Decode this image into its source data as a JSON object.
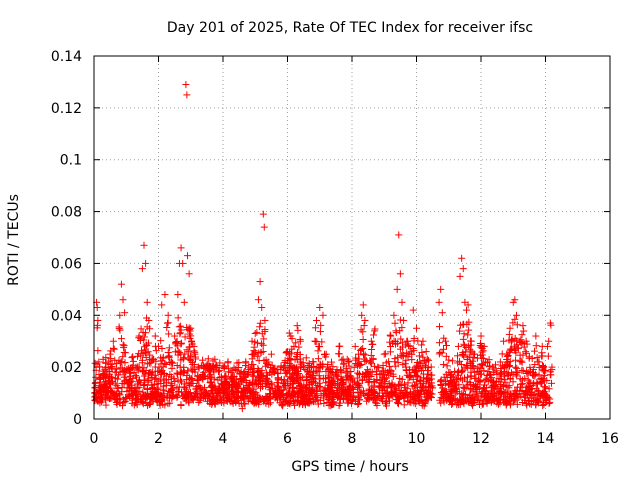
{
  "chart_data": {
    "type": "scatter",
    "title": "Day 201 of 2025, Rate Of TEC Index for receiver ifsc",
    "xlabel": "GPS time / hours",
    "ylabel": "ROTI / TECUs",
    "xlim": [
      0,
      16
    ],
    "ylim": [
      0,
      0.14
    ],
    "xticks": [
      0,
      2,
      4,
      6,
      8,
      10,
      12,
      14,
      16
    ],
    "yticks": [
      0,
      0.02,
      0.04,
      0.06,
      0.08,
      0.1,
      0.12,
      0.14
    ],
    "ytick_labels": [
      "0",
      "0.02",
      "0.04",
      "0.06",
      "0.08",
      "0.1",
      "0.12",
      "0.14"
    ],
    "grid": true,
    "marker": "+",
    "color": "#ff0000",
    "data_gaps_hours": [
      [
        10.5,
        10.7
      ]
    ],
    "series": [
      {
        "name": "ROTI",
        "points": [
          [
            0.02,
            0.01
          ],
          [
            0.05,
            0.014
          ],
          [
            0.08,
            0.045
          ],
          [
            0.1,
            0.043
          ],
          [
            0.12,
            0.038
          ],
          [
            0.15,
            0.022
          ],
          [
            0.2,
            0.012
          ],
          [
            0.3,
            0.016
          ],
          [
            0.4,
            0.011
          ],
          [
            0.5,
            0.025
          ],
          [
            0.6,
            0.03
          ],
          [
            0.7,
            0.018
          ],
          [
            0.8,
            0.04
          ],
          [
            0.85,
            0.052
          ],
          [
            0.9,
            0.046
          ],
          [
            0.95,
            0.041
          ],
          [
            1.0,
            0.015
          ],
          [
            1.1,
            0.012
          ],
          [
            1.2,
            0.024
          ],
          [
            1.3,
            0.02
          ],
          [
            1.4,
            0.032
          ],
          [
            1.5,
            0.058
          ],
          [
            1.55,
            0.067
          ],
          [
            1.6,
            0.06
          ],
          [
            1.65,
            0.045
          ],
          [
            1.7,
            0.038
          ],
          [
            1.8,
            0.016
          ],
          [
            1.9,
            0.032
          ],
          [
            2.0,
            0.028
          ],
          [
            2.1,
            0.044
          ],
          [
            2.2,
            0.048
          ],
          [
            2.3,
            0.04
          ],
          [
            2.4,
            0.022
          ],
          [
            2.5,
            0.032
          ],
          [
            2.6,
            0.048
          ],
          [
            2.65,
            0.06
          ],
          [
            2.7,
            0.066
          ],
          [
            2.75,
            0.06
          ],
          [
            2.8,
            0.045
          ],
          [
            2.85,
            0.129
          ],
          [
            2.88,
            0.125
          ],
          [
            2.9,
            0.063
          ],
          [
            2.95,
            0.056
          ],
          [
            3.0,
            0.035
          ],
          [
            3.1,
            0.028
          ],
          [
            3.2,
            0.015
          ],
          [
            3.3,
            0.012
          ],
          [
            3.4,
            0.018
          ],
          [
            3.5,
            0.01
          ],
          [
            3.6,
            0.014
          ],
          [
            3.7,
            0.012
          ],
          [
            3.8,
            0.009
          ],
          [
            3.9,
            0.016
          ],
          [
            4.0,
            0.011
          ],
          [
            4.1,
            0.013
          ],
          [
            4.2,
            0.008
          ],
          [
            4.3,
            0.015
          ],
          [
            4.4,
            0.012
          ],
          [
            4.5,
            0.006
          ],
          [
            4.6,
            0.004
          ],
          [
            4.7,
            0.01
          ],
          [
            4.8,
            0.02
          ],
          [
            4.9,
            0.03
          ],
          [
            5.0,
            0.033
          ],
          [
            5.1,
            0.046
          ],
          [
            5.15,
            0.053
          ],
          [
            5.2,
            0.043
          ],
          [
            5.25,
            0.079
          ],
          [
            5.28,
            0.074
          ],
          [
            5.3,
            0.038
          ],
          [
            5.4,
            0.022
          ],
          [
            5.5,
            0.025
          ],
          [
            5.6,
            0.018
          ],
          [
            5.7,
            0.012
          ],
          [
            5.8,
            0.02
          ],
          [
            5.9,
            0.015
          ],
          [
            6.0,
            0.026
          ],
          [
            6.1,
            0.032
          ],
          [
            6.2,
            0.028
          ],
          [
            6.3,
            0.036
          ],
          [
            6.4,
            0.03
          ],
          [
            6.5,
            0.02
          ],
          [
            6.6,
            0.012
          ],
          [
            6.7,
            0.016
          ],
          [
            6.8,
            0.022
          ],
          [
            6.9,
            0.038
          ],
          [
            7.0,
            0.043
          ],
          [
            7.1,
            0.04
          ],
          [
            7.2,
            0.025
          ],
          [
            7.3,
            0.013
          ],
          [
            7.4,
            0.01
          ],
          [
            7.5,
            0.018
          ],
          [
            7.6,
            0.028
          ],
          [
            7.7,
            0.015
          ],
          [
            7.8,
            0.01
          ],
          [
            7.9,
            0.022
          ],
          [
            8.0,
            0.015
          ],
          [
            8.1,
            0.028
          ],
          [
            8.2,
            0.025
          ],
          [
            8.3,
            0.04
          ],
          [
            8.35,
            0.044
          ],
          [
            8.4,
            0.038
          ],
          [
            8.5,
            0.018
          ],
          [
            8.6,
            0.03
          ],
          [
            8.7,
            0.034
          ],
          [
            8.8,
            0.02
          ],
          [
            8.9,
            0.012
          ],
          [
            9.0,
            0.025
          ],
          [
            9.1,
            0.018
          ],
          [
            9.2,
            0.032
          ],
          [
            9.3,
            0.04
          ],
          [
            9.4,
            0.05
          ],
          [
            9.45,
            0.071
          ],
          [
            9.5,
            0.056
          ],
          [
            9.55,
            0.045
          ],
          [
            9.6,
            0.038
          ],
          [
            9.7,
            0.03
          ],
          [
            9.8,
            0.028
          ],
          [
            9.9,
            0.042
          ],
          [
            10.0,
            0.035
          ],
          [
            10.1,
            0.022
          ],
          [
            10.2,
            0.03
          ],
          [
            10.3,
            0.026
          ],
          [
            10.4,
            0.015
          ],
          [
            10.5,
            0.012
          ],
          [
            10.7,
            0.045
          ],
          [
            10.75,
            0.05
          ],
          [
            10.8,
            0.041
          ],
          [
            10.9,
            0.03
          ],
          [
            11.0,
            0.018
          ],
          [
            11.1,
            0.014
          ],
          [
            11.2,
            0.012
          ],
          [
            11.3,
            0.028
          ],
          [
            11.35,
            0.055
          ],
          [
            11.4,
            0.062
          ],
          [
            11.45,
            0.058
          ],
          [
            11.5,
            0.045
          ],
          [
            11.55,
            0.042
          ],
          [
            11.6,
            0.044
          ],
          [
            11.7,
            0.03
          ],
          [
            11.8,
            0.025
          ],
          [
            11.9,
            0.02
          ],
          [
            12.0,
            0.032
          ],
          [
            12.1,
            0.028
          ],
          [
            12.2,
            0.022
          ],
          [
            12.3,
            0.015
          ],
          [
            12.4,
            0.018
          ],
          [
            12.5,
            0.012
          ],
          [
            12.6,
            0.022
          ],
          [
            12.7,
            0.03
          ],
          [
            12.8,
            0.025
          ],
          [
            12.9,
            0.035
          ],
          [
            13.0,
            0.045
          ],
          [
            13.05,
            0.046
          ],
          [
            13.1,
            0.04
          ],
          [
            13.2,
            0.03
          ],
          [
            13.3,
            0.036
          ],
          [
            13.4,
            0.03
          ],
          [
            13.5,
            0.024
          ],
          [
            13.6,
            0.018
          ],
          [
            13.7,
            0.032
          ],
          [
            13.8,
            0.022
          ],
          [
            13.9,
            0.028
          ],
          [
            14.0,
            0.012
          ],
          [
            14.1,
            0.03
          ],
          [
            14.15,
            0.037
          ],
          [
            14.2,
            0.02
          ]
        ]
      }
    ]
  }
}
